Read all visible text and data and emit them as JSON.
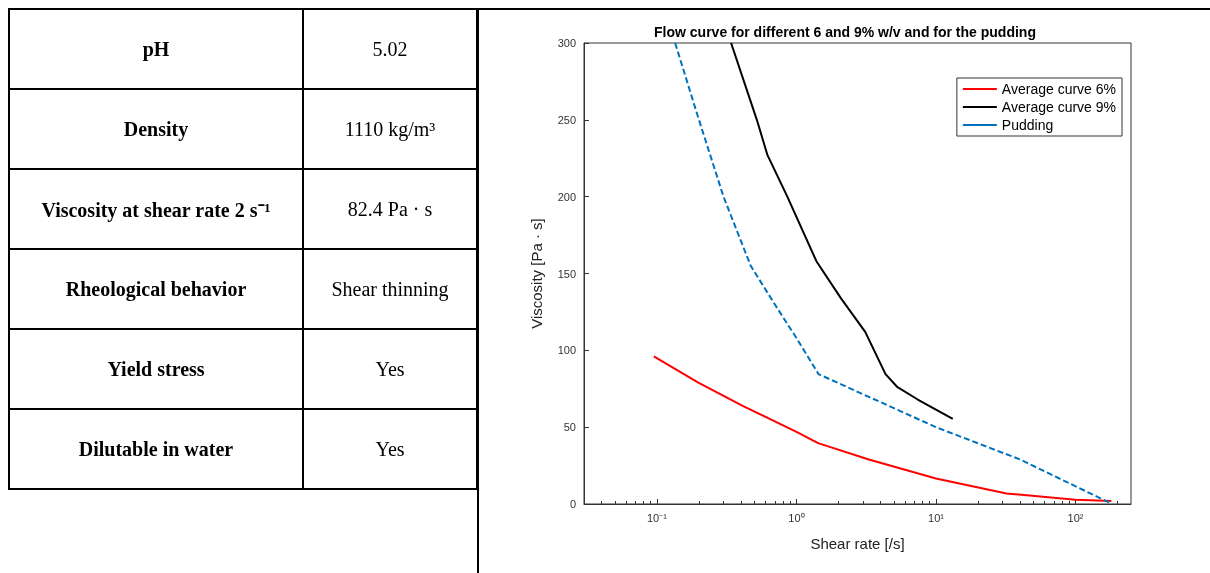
{
  "chart_data": [
    {
      "type": "other",
      "annotations": [
        "pH",
        "5.02",
        "Density",
        "1110 kg/m³",
        "Viscosity at shear rate 2 s⁻¹",
        "82.4 Pa · s",
        "Rheological behavior",
        "Shear thinning",
        "Yield stress",
        "Yes",
        "Dilutable in water",
        "Yes"
      ]
    },
    {
      "type": "line",
      "title": "Flow curve for different 6 and 9% w/v and for the pudding",
      "xlabel": "Shear rate [/s]",
      "ylabel": "Viscosity [Pa · s]",
      "log": "x",
      "xlim": [
        0.03,
        250
      ],
      "xticks": [
        {
          "value": 0.1,
          "label": "10⁻¹"
        },
        {
          "value": 1,
          "label": "10⁰"
        },
        {
          "value": 10,
          "label": "10¹"
        },
        {
          "value": 100,
          "label": "10²"
        }
      ],
      "ylim": [
        0,
        300
      ],
      "yticks": [
        0,
        50,
        100,
        150,
        200,
        250,
        300
      ],
      "grid": false,
      "legend": "top right",
      "marker": "none",
      "series": [
        {
          "name": "Average curve 6%",
          "color": "#ff0000",
          "line_style": "solid",
          "x": [
            0.095,
            0.198,
            0.415,
            1.0,
            1.43,
            3.3,
            10,
            32,
            100,
            181
          ],
          "values": [
            96,
            79,
            63.7,
            47,
            39.6,
            29,
            16.6,
            6.9,
            2.8,
            1.9
          ]
        },
        {
          "name": "Average curve 9%",
          "color": "#000000",
          "line_style": "solid",
          "x": [
            0.34,
            0.52,
            0.62,
            0.86,
            1.39,
            2.08,
            3.11,
            4.35,
            5.3,
            7.4,
            13.2
          ],
          "values": [
            300,
            250,
            227,
            200,
            158,
            134,
            112,
            84.5,
            76,
            68,
            55.4
          ]
        },
        {
          "name": "Pudding",
          "color": "#0072bd",
          "line_style": "dashed",
          "x": [
            0.135,
            0.2,
            0.3,
            0.47,
            0.71,
            1.0,
            1.44,
            10,
            40,
            174
          ],
          "values": [
            300,
            250,
            200,
            155,
            129,
            108,
            84.5,
            50,
            29,
            1
          ]
        }
      ]
    }
  ]
}
